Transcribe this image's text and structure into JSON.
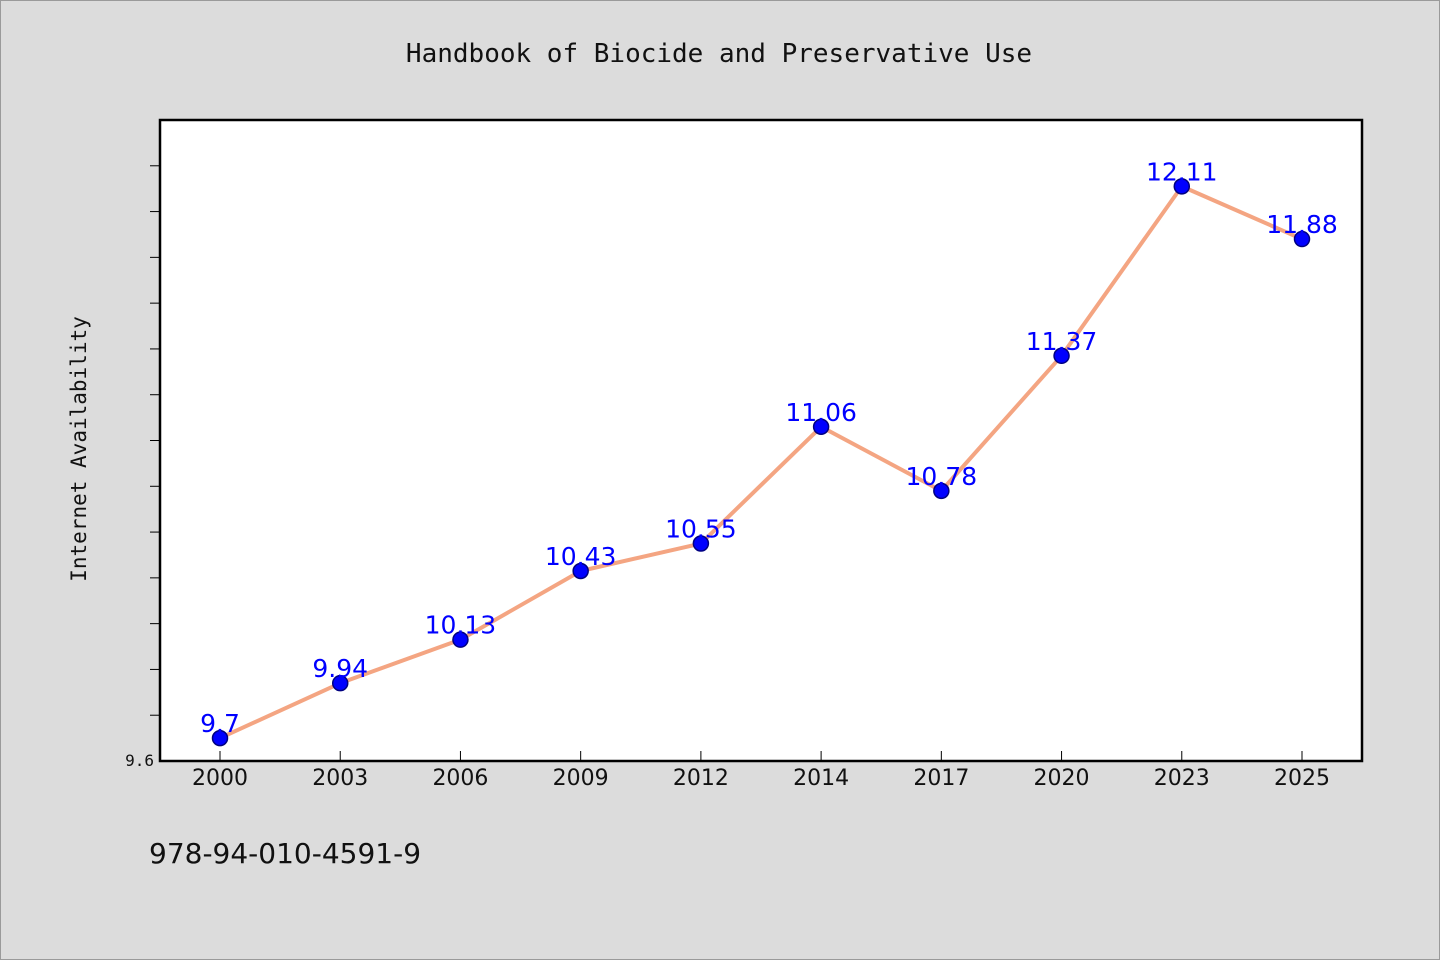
{
  "chart_data": {
    "type": "line",
    "title": "Handbook of Biocide and Preservative Use",
    "ylabel": "Internet Availability",
    "xlabel": "",
    "categories": [
      "2000",
      "2003",
      "2006",
      "2009",
      "2012",
      "2014",
      "2017",
      "2020",
      "2023",
      "2025"
    ],
    "series": [
      {
        "values": [
          9.7,
          9.94,
          10.13,
          10.43,
          10.55,
          11.06,
          10.78,
          11.37,
          12.11,
          11.88
        ],
        "data_labels": [
          "9.7",
          "9.94",
          "10.13",
          "10.43",
          "10.55",
          "11.06",
          "10.78",
          "11.37",
          "12.11",
          "11.88"
        ]
      }
    ],
    "ylim": [
      9.6,
      12.4
    ],
    "y_tick_labels": [
      {
        "value": 9.6,
        "label": "9.6"
      }
    ],
    "y_minor_tick_step": 0.2,
    "grid": false,
    "colors": {
      "line": "#f4a582",
      "marker": "#0000ff",
      "marker_edge": "#000080",
      "data_label": "#0000ff",
      "background": "#dcdcdc",
      "plot_background": "#ffffff"
    }
  },
  "footnote": "978-94-010-4591-9"
}
